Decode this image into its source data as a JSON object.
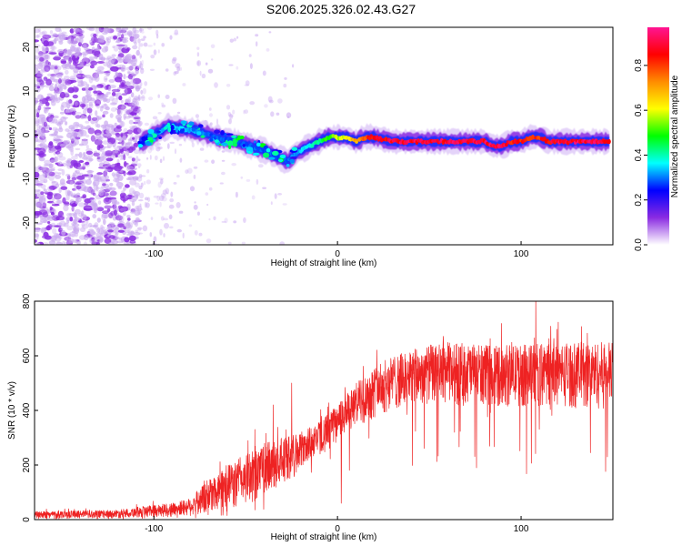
{
  "title": "S206.2025.326.02.43.G27",
  "chart_data": [
    {
      "type": "heatmap",
      "name": "spectrogram",
      "xlabel": "Height of straight line (km)",
      "ylabel": "Frequency (Hz)",
      "xlim": [
        -165,
        150
      ],
      "ylim": [
        -25,
        24.5
      ],
      "xticks": [
        -100,
        0,
        100
      ],
      "xtick_labels": [
        "-100",
        "0",
        "100"
      ],
      "yticks": [
        -20,
        -10,
        0,
        10,
        20
      ],
      "ytick_labels": [
        "-20",
        "-10",
        "0",
        "10",
        "20"
      ],
      "ridge": {
        "x": [
          -108,
          -100,
          -92,
          -85,
          -78,
          -70,
          -62,
          -55,
          -48,
          -40,
          -35,
          -30,
          -27,
          -22,
          -15,
          -10,
          -5,
          0,
          5,
          10,
          15,
          20,
          30,
          40,
          50,
          60,
          70,
          80,
          85,
          90,
          95,
          100,
          105,
          110,
          115,
          120,
          130,
          140,
          148
        ],
        "y": [
          -2,
          0,
          2,
          1.5,
          1,
          0,
          -1,
          -1.5,
          -2.5,
          -3.5,
          -4.5,
          -5.5,
          -6,
          -4,
          -2.5,
          -1.5,
          -0.5,
          -0.5,
          -0.5,
          -1.5,
          -0.5,
          -0.5,
          -1.5,
          -1.5,
          -1.5,
          -1.5,
          -1.5,
          -1.5,
          -2.5,
          -2.5,
          -1.5,
          -1.5,
          -0.5,
          -0.5,
          -1.5,
          -1.5,
          -1.5,
          -1.5,
          -1.5
        ],
        "amplitude": [
          0.25,
          0.3,
          0.4,
          0.35,
          0.35,
          0.3,
          0.3,
          0.3,
          0.3,
          0.3,
          0.3,
          0.3,
          0.3,
          0.35,
          0.4,
          0.45,
          0.55,
          0.6,
          0.65,
          0.75,
          0.85,
          0.9,
          0.95,
          0.95,
          0.95,
          0.95,
          0.95,
          0.95,
          0.95,
          0.95,
          0.9,
          0.9,
          0.85,
          0.85,
          0.9,
          0.95,
          0.95,
          0.95,
          0.9
        ]
      },
      "noise_region_xlim": [
        -165,
        -108
      ],
      "colorbar": {
        "label": "Normalized spectral amplitude",
        "range": [
          0.0,
          0.97
        ],
        "ticks": [
          0.0,
          0.2,
          0.4,
          0.6,
          0.8
        ],
        "tick_labels": [
          "0.0",
          "0.2",
          "0.4",
          "0.6",
          "0.8"
        ],
        "colors": [
          "#ffffff",
          "#8a2be2",
          "#0000ff",
          "#00ffff",
          "#00ff00",
          "#ffff00",
          "#ff8c00",
          "#ff0000",
          "#ff1493"
        ]
      }
    },
    {
      "type": "line",
      "name": "snr",
      "xlabel": "Height of straight line (km)",
      "ylabel": "SNR (10 * v/v)",
      "xlim": [
        -165,
        150
      ],
      "ylim": [
        0,
        800
      ],
      "xticks": [
        -100,
        0,
        100
      ],
      "xtick_labels": [
        "-100",
        "0",
        "100"
      ],
      "yticks": [
        0,
        200,
        400,
        600,
        800
      ],
      "ytick_labels": [
        "0",
        "200",
        "400",
        "600",
        "800"
      ],
      "color": "#ee2222",
      "envelope": {
        "x": [
          -165,
          -120,
          -100,
          -90,
          -80,
          -70,
          -60,
          -50,
          -40,
          -30,
          -20,
          -10,
          0,
          10,
          20,
          30,
          40,
          50,
          60,
          80,
          100,
          120,
          150
        ],
        "upper": [
          30,
          35,
          55,
          60,
          80,
          150,
          200,
          240,
          280,
          300,
          320,
          360,
          420,
          500,
          560,
          600,
          620,
          640,
          650,
          640,
          640,
          650,
          650
        ],
        "lower": [
          5,
          5,
          8,
          10,
          12,
          20,
          30,
          50,
          80,
          120,
          180,
          230,
          280,
          330,
          370,
          400,
          410,
          420,
          420,
          410,
          410,
          410,
          400
        ]
      },
      "spikes": [
        {
          "x": -45,
          "y": 330
        },
        {
          "x": -35,
          "y": 420
        },
        {
          "x": -25,
          "y": 500
        },
        {
          "x": 2,
          "y": 60
        },
        {
          "x": 108,
          "y": 805
        },
        {
          "x": 147,
          "y": 230
        }
      ]
    }
  ]
}
